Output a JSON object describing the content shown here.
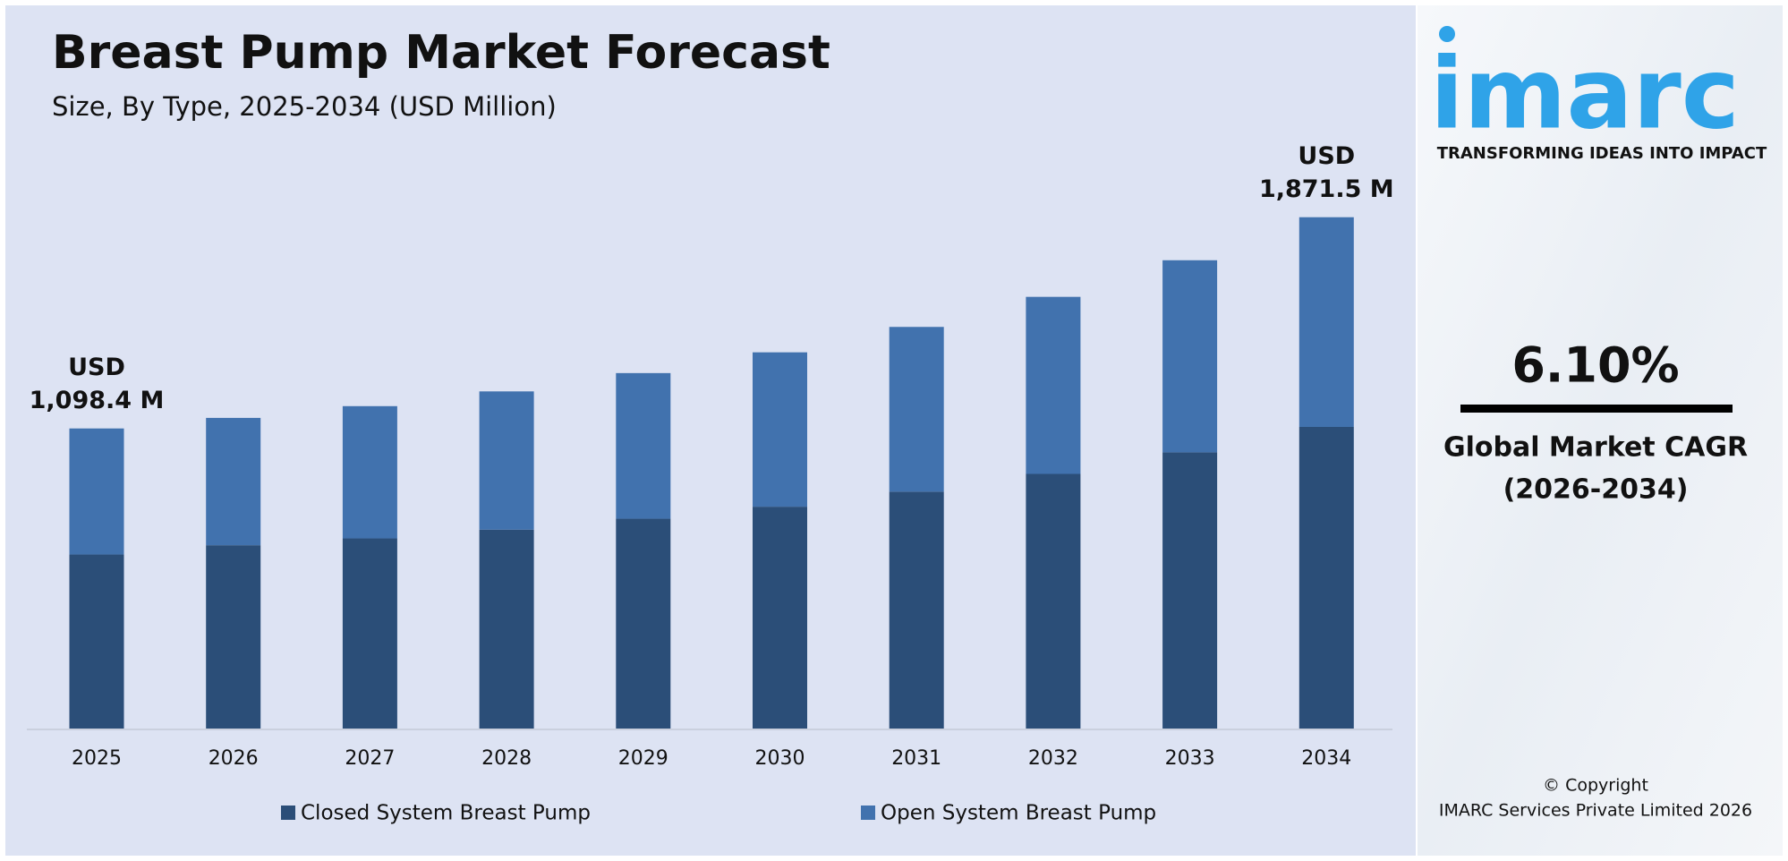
{
  "chart_data": {
    "type": "stacked_bar",
    "title": "Breast Pump Market Forecast",
    "subtitle": "Size, By Type, 2025-2034 (USD Million)",
    "categories": [
      "2025",
      "2026",
      "2027",
      "2028",
      "2029",
      "2030",
      "2031",
      "2032",
      "2033",
      "2034"
    ],
    "series": [
      {
        "name": "Closed System Breast Pump",
        "color": "#2b4e78",
        "values": [
          637,
          671,
          696,
          728,
          768,
          812,
          867,
          932,
          1011,
          1104
        ]
      },
      {
        "name": "Open System Breast Pump",
        "color": "#4172ae",
        "values": [
          461.4,
          466,
          484,
          506,
          533,
          565,
          603,
          648,
          703,
          767.5
        ]
      }
    ],
    "annotations": [
      [
        "USD",
        "1,098.4 M"
      ],
      [
        "USD",
        "1,871.5 M"
      ]
    ],
    "ylim": [
      0,
      1900
    ],
    "legend": "bottom"
  },
  "sidebar": {
    "logo": "imarc",
    "tagline": "TRANSFORMING IDEAS INTO IMPACT",
    "cagr": "6.10%",
    "cagr_label": [
      "Global Market CAGR",
      "(2026-2034)"
    ],
    "copyright": [
      "© Copyright",
      "IMARC Services Private Limited 2026"
    ]
  }
}
